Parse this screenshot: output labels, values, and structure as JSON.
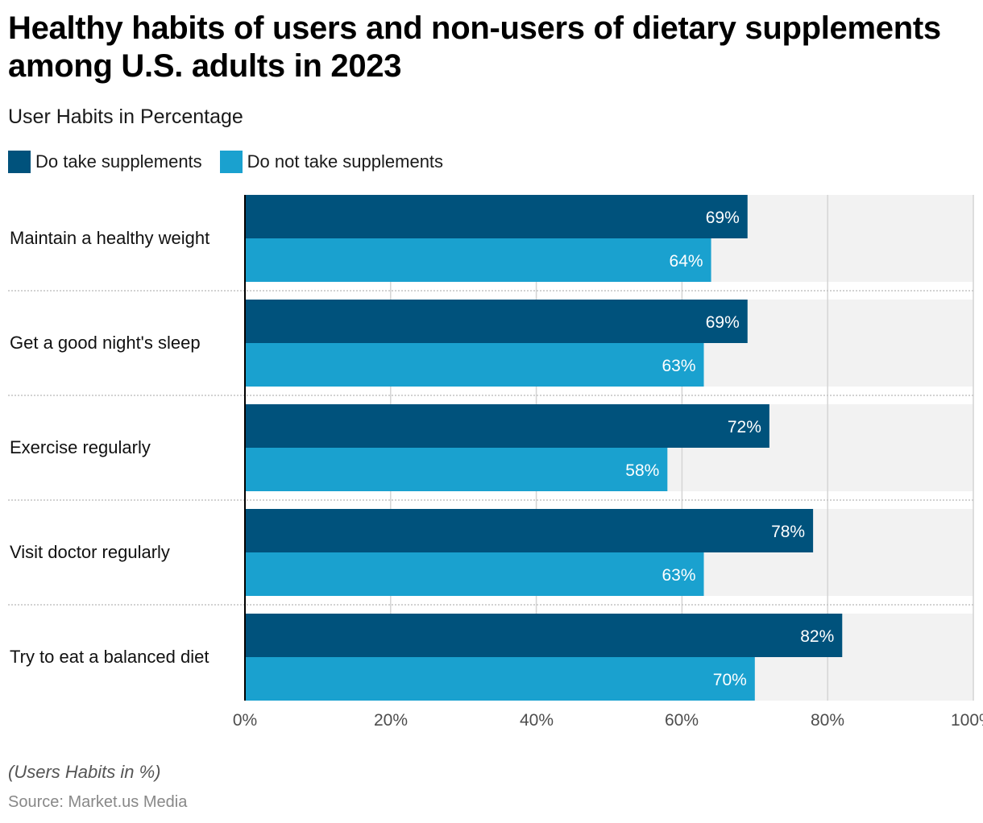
{
  "chart_data": {
    "type": "bar",
    "orientation": "horizontal",
    "title": "Healthy habits of users and non-users of dietary supplements among U.S. adults in 2023",
    "subtitle": "User Habits in Percentage",
    "categories": [
      "Maintain a healthy weight",
      "Get a good night's sleep",
      "Exercise regularly",
      "Visit doctor regularly",
      "Try to eat a balanced diet"
    ],
    "series": [
      {
        "name": "Do take supplements",
        "color": "#00527c",
        "values": [
          69,
          69,
          72,
          78,
          82
        ]
      },
      {
        "name": "Do not take supplements",
        "color": "#1aa1cf",
        "values": [
          64,
          63,
          58,
          63,
          70
        ]
      }
    ],
    "value_suffix": "%",
    "xlim": [
      0,
      100
    ],
    "x_ticks": [
      "0%",
      "20%",
      "40%",
      "60%",
      "80%",
      "100%"
    ],
    "legend_position": "top-left",
    "grid": true,
    "footnote": "(Users Habits in %)",
    "source": "Source: Market.us Media"
  }
}
